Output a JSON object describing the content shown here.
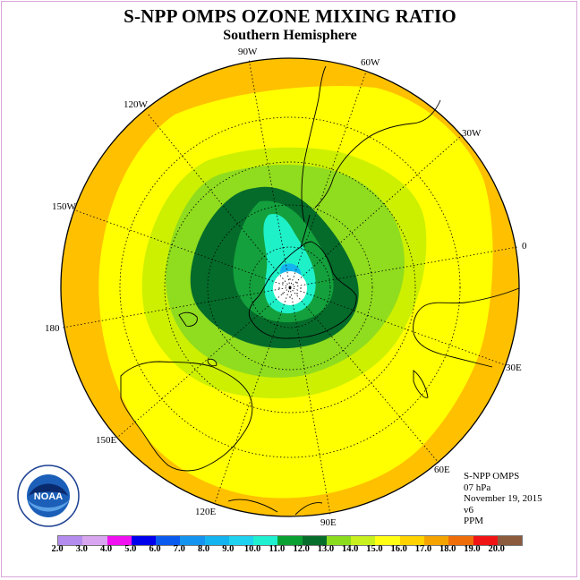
{
  "title": "S-NPP OMPS OZONE MIXING RATIO",
  "subtitle": "Southern Hemisphere",
  "longitude_labels": {
    "lon_90w": "90W",
    "lon_60w": "60W",
    "lon_30w": "30W",
    "lon_0": "0",
    "lon_30e": "30E",
    "lon_60e": "60E",
    "lon_90e": "90E",
    "lon_120e": "120E",
    "lon_150e": "150E",
    "lon_180": "180",
    "lon_150w": "150W",
    "lon_120w": "120W"
  },
  "info": {
    "instrument": "S-NPP OMPS",
    "level": "07 hPa",
    "date": "November 19, 2015",
    "version": "v6",
    "units": "PPM"
  },
  "logo_text": "NOAA",
  "legend": {
    "ticks": [
      "2.0",
      "3.0",
      "4.0",
      "5.0",
      "6.0",
      "7.0",
      "8.0",
      "9.0",
      "10.0",
      "11.0",
      "12.0",
      "13.0",
      "14.0",
      "15.0",
      "16.0",
      "17.0",
      "18.0",
      "19.0",
      "20.0"
    ],
    "colors": [
      "#b48cf0",
      "#d8a6f0",
      "#f010f0",
      "#0000ee",
      "#0a5af0",
      "#1494f0",
      "#14b4f0",
      "#1ed2f0",
      "#1ef0d0",
      "#0aa032",
      "#066e2a",
      "#8cdc1e",
      "#c8f01e",
      "#ffff14",
      "#ffd200",
      "#f5a300",
      "#f06e0a",
      "#f01414",
      "#8c5a3c"
    ]
  },
  "map_data": {
    "projection": "south-polar-stereographic",
    "field_ppm_levels": {
      "outer_ring": "16-17",
      "mid_latitudes": "15-16",
      "transition": "14-15",
      "vortex_edge": "13-14",
      "vortex_inner": "11-12",
      "vortex_core": "10-11",
      "pole_minimum": "9-10"
    }
  }
}
